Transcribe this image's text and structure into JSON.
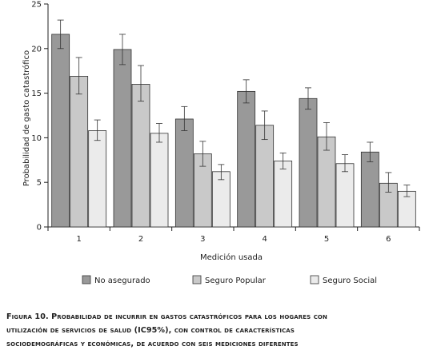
{
  "chart_data": {
    "type": "bar",
    "categories": [
      "1",
      "2",
      "3",
      "4",
      "5",
      "6"
    ],
    "xlabel": "Medición usada",
    "ylabel": "Probabilidad de gasto catastrófico",
    "ylim": [
      0,
      25
    ],
    "yticks": [
      0,
      5,
      10,
      15,
      20,
      25
    ],
    "grid": false,
    "legend_position": "bottom",
    "error_bars": true,
    "series": [
      {
        "name": "No asegurado",
        "color": "#999999",
        "values": [
          21.6,
          19.9,
          12.1,
          15.2,
          14.4,
          8.4
        ],
        "ci_low": [
          20.0,
          18.2,
          10.8,
          13.9,
          13.2,
          7.3
        ],
        "ci_high": [
          23.2,
          21.6,
          13.5,
          16.5,
          15.6,
          9.5
        ]
      },
      {
        "name": "Seguro Popular",
        "color": "#c9c9c9",
        "values": [
          16.9,
          16.0,
          8.2,
          11.4,
          10.1,
          4.9
        ],
        "ci_low": [
          14.9,
          14.1,
          6.8,
          9.8,
          8.6,
          3.9
        ],
        "ci_high": [
          19.0,
          18.1,
          9.6,
          13.0,
          11.7,
          6.1
        ]
      },
      {
        "name": "Seguro Social",
        "color": "#ebebeb",
        "values": [
          10.8,
          10.5,
          6.2,
          7.4,
          7.1,
          4.0
        ],
        "ci_low": [
          9.7,
          9.5,
          5.3,
          6.5,
          6.2,
          3.4
        ],
        "ci_high": [
          12.0,
          11.6,
          7.0,
          8.3,
          8.1,
          4.7
        ]
      }
    ]
  },
  "caption": {
    "line1": "Figura 10. Probabilidad de incurrir en gastos catastróficos para los hogares con",
    "line2": "utilización de servicios de salud (IC95%), con control de características",
    "line3": "sociodemográficas y económicas, de acuerdo con seis mediciones diferentes"
  }
}
